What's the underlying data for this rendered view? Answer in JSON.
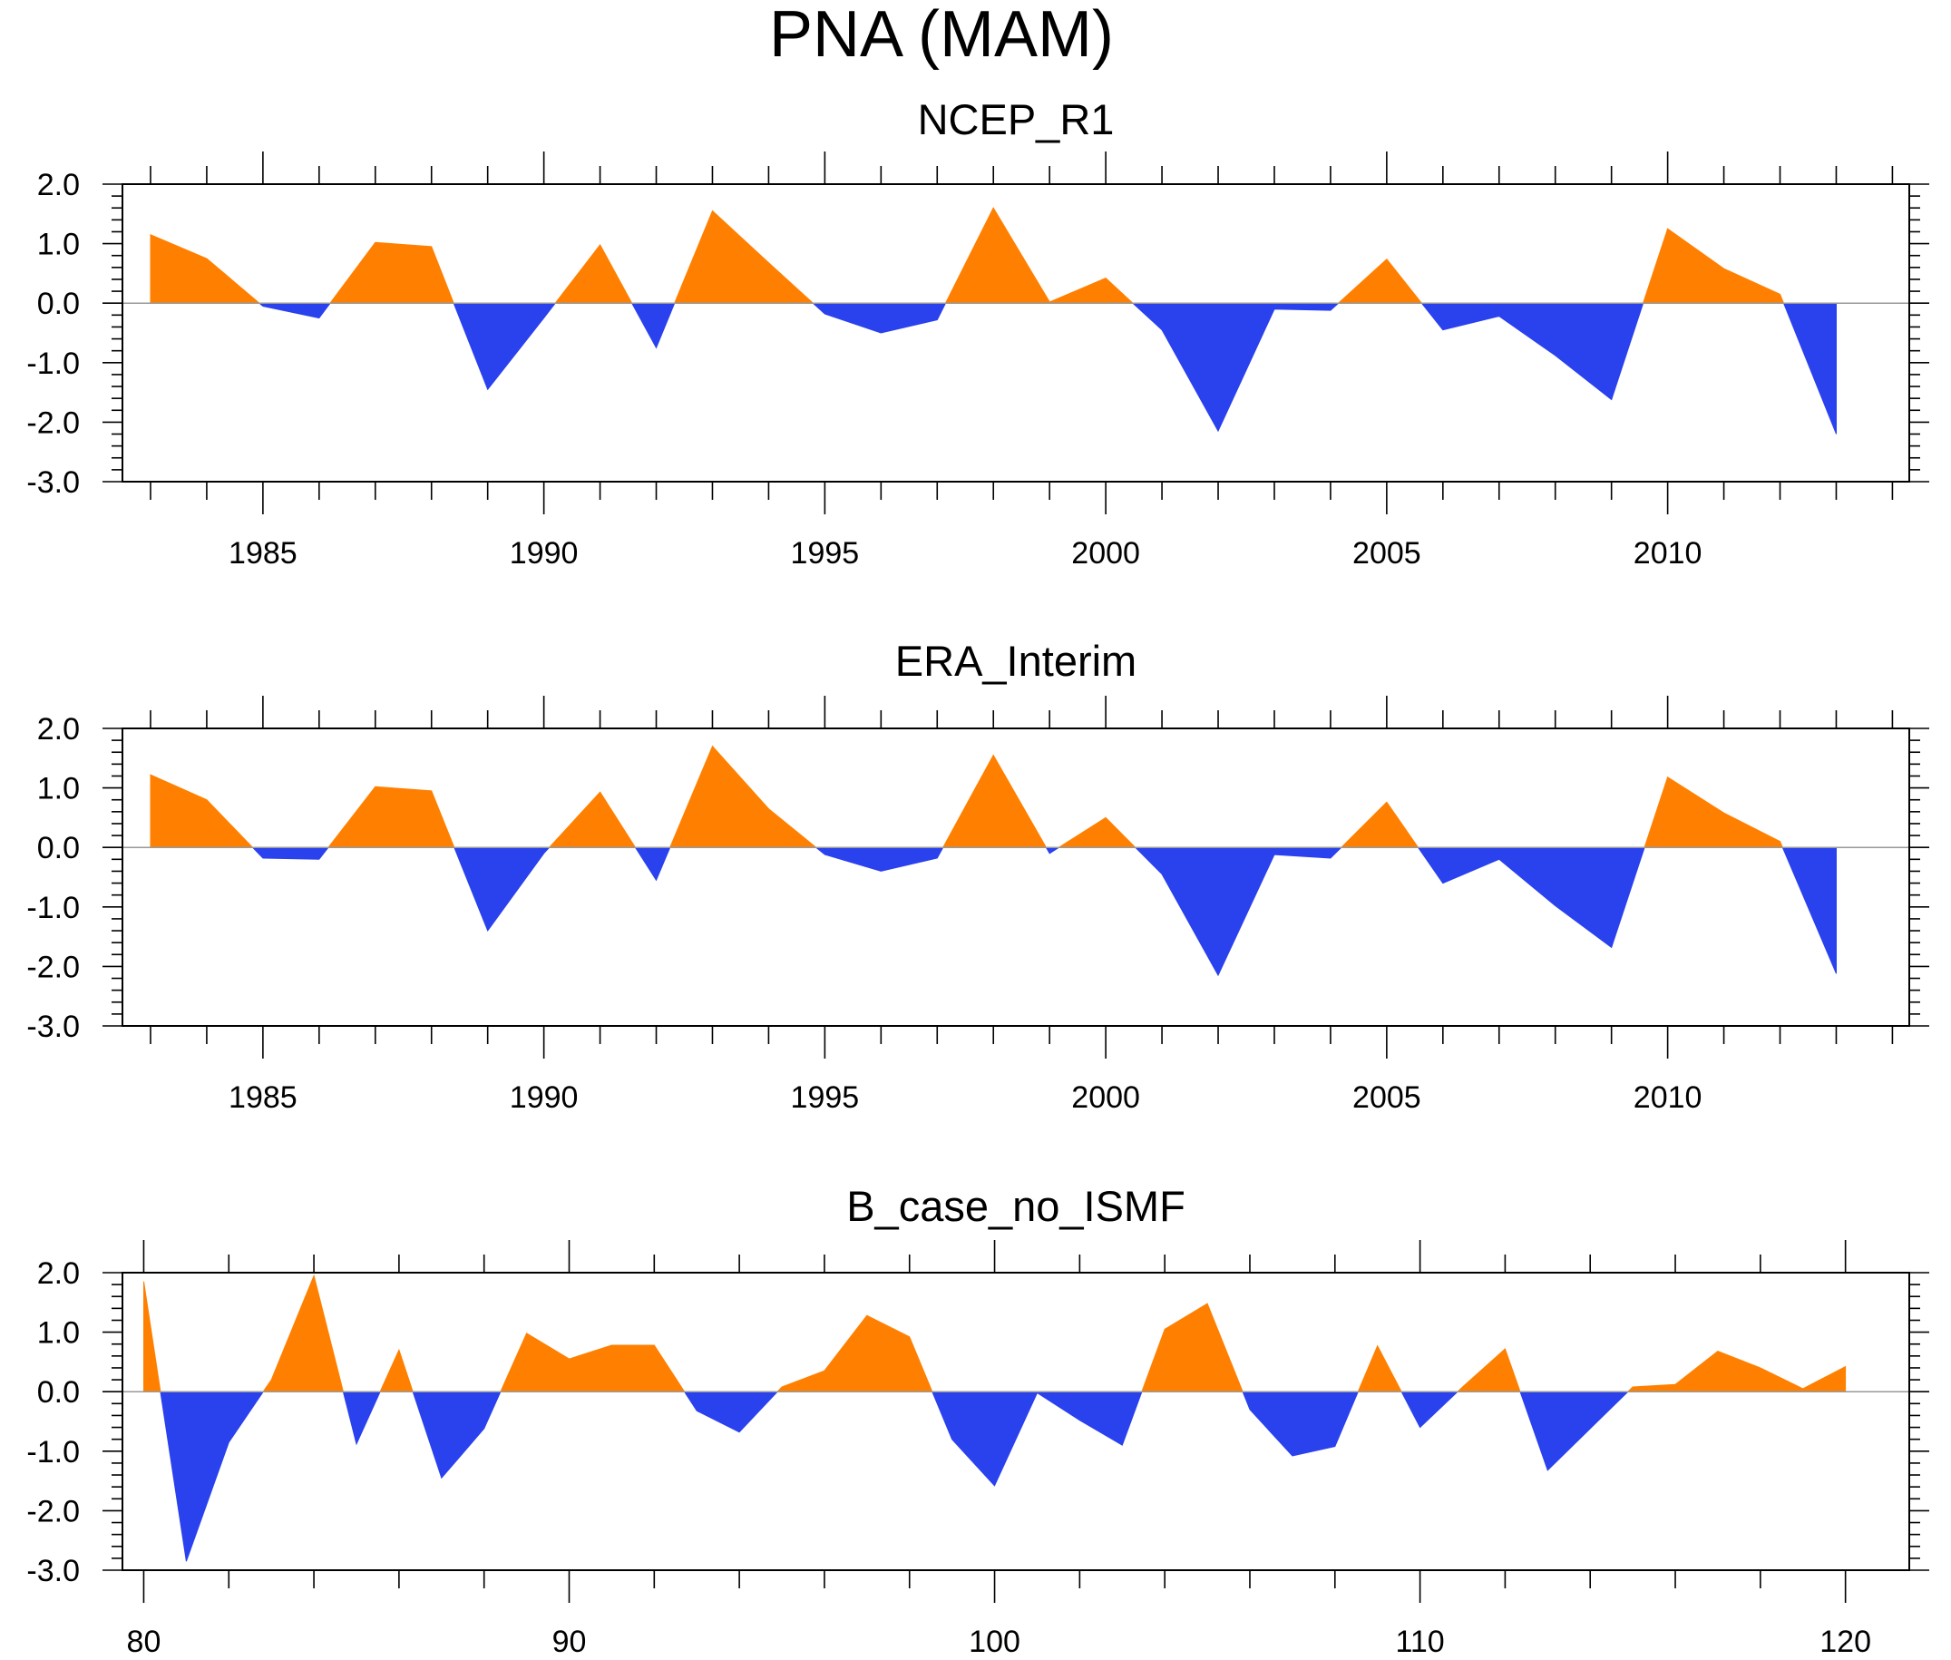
{
  "title": "PNA (MAM)",
  "colors": {
    "positive": "#ff8000",
    "negative": "#2a41ee",
    "frame": "#000000",
    "zero_line": "#999999"
  },
  "chart_data": [
    {
      "type": "area",
      "title": "NCEP_R1",
      "xlabel": "",
      "ylabel": "",
      "xlim": [
        1982.5,
        2014.3
      ],
      "ylim": [
        -3.0,
        2.0
      ],
      "x_ticks": [
        "1985",
        "1990",
        "1995",
        "2000",
        "2005",
        "2010"
      ],
      "y_ticks": [
        "2.0",
        "1.0",
        "0.0",
        "-1.0",
        "-2.0",
        "-3.0"
      ],
      "x": [
        1983,
        1984,
        1985,
        1986,
        1987,
        1988,
        1989,
        1990,
        1991,
        1992,
        1993,
        1994,
        1995,
        1996,
        1997,
        1998,
        1999,
        2000,
        2001,
        2002,
        2003,
        2004,
        2005,
        2006,
        2007,
        2008,
        2009,
        2010,
        2011,
        2012,
        2013
      ],
      "values": [
        1.15,
        0.75,
        -0.05,
        -0.25,
        1.02,
        0.95,
        -1.45,
        -0.25,
        0.98,
        -0.75,
        1.55,
        0.68,
        -0.18,
        -0.5,
        -0.28,
        1.6,
        0.02,
        0.42,
        -0.45,
        -2.15,
        -0.1,
        -0.12,
        0.74,
        -0.45,
        -0.22,
        -0.88,
        -1.62,
        1.25,
        0.58,
        0.15,
        -2.2
      ]
    },
    {
      "type": "area",
      "title": "ERA_Interim",
      "xlabel": "",
      "ylabel": "",
      "xlim": [
        1982.5,
        2014.3
      ],
      "ylim": [
        -3.0,
        2.0
      ],
      "x_ticks": [
        "1985",
        "1990",
        "1995",
        "2000",
        "2005",
        "2010"
      ],
      "y_ticks": [
        "2.0",
        "1.0",
        "0.0",
        "-1.0",
        "-2.0",
        "-3.0"
      ],
      "x": [
        1983,
        1984,
        1985,
        1986,
        1987,
        1988,
        1989,
        1990,
        1991,
        1992,
        1993,
        1994,
        1995,
        1996,
        1997,
        1998,
        1999,
        2000,
        2001,
        2002,
        2003,
        2004,
        2005,
        2006,
        2007,
        2008,
        2009,
        2010,
        2011,
        2012,
        2013
      ],
      "values": [
        1.22,
        0.8,
        -0.18,
        -0.2,
        1.02,
        0.95,
        -1.4,
        -0.1,
        0.93,
        -0.55,
        1.7,
        0.65,
        -0.12,
        -0.4,
        -0.18,
        1.55,
        -0.1,
        0.5,
        -0.45,
        -2.15,
        -0.12,
        -0.18,
        0.76,
        -0.6,
        -0.2,
        -0.98,
        -1.68,
        1.18,
        0.58,
        0.1,
        -2.12
      ]
    },
    {
      "type": "area",
      "title": "B_case_no_ISMF",
      "xlabel": "",
      "ylabel": "",
      "xlim": [
        79.5,
        121.5
      ],
      "ylim": [
        -3.0,
        2.0
      ],
      "x_ticks": [
        "80",
        "90",
        "100",
        "110",
        "120"
      ],
      "y_ticks": [
        "2.0",
        "1.0",
        "0.0",
        "-1.0",
        "-2.0",
        "-3.0"
      ],
      "x": [
        80,
        81,
        82,
        83,
        84,
        85,
        86,
        87,
        88,
        89,
        90,
        91,
        92,
        93,
        94,
        95,
        96,
        97,
        98,
        99,
        100,
        101,
        102,
        103,
        104,
        105,
        106,
        107,
        108,
        109,
        110,
        111,
        112,
        113,
        114,
        115,
        116,
        117,
        118,
        119,
        120
      ],
      "values": [
        1.85,
        -2.85,
        -0.85,
        0.2,
        1.95,
        -0.88,
        0.7,
        -1.45,
        -0.62,
        0.98,
        0.55,
        0.78,
        0.78,
        -0.32,
        -0.68,
        0.08,
        0.35,
        1.28,
        0.92,
        -0.8,
        -1.58,
        -0.02,
        -0.48,
        -0.9,
        1.05,
        1.48,
        -0.3,
        -1.08,
        -0.92,
        0.77,
        -0.6,
        0.08,
        0.72,
        -1.32,
        -0.62,
        0.08,
        0.12,
        0.68,
        0.4,
        0.05,
        0.42
      ]
    }
  ]
}
